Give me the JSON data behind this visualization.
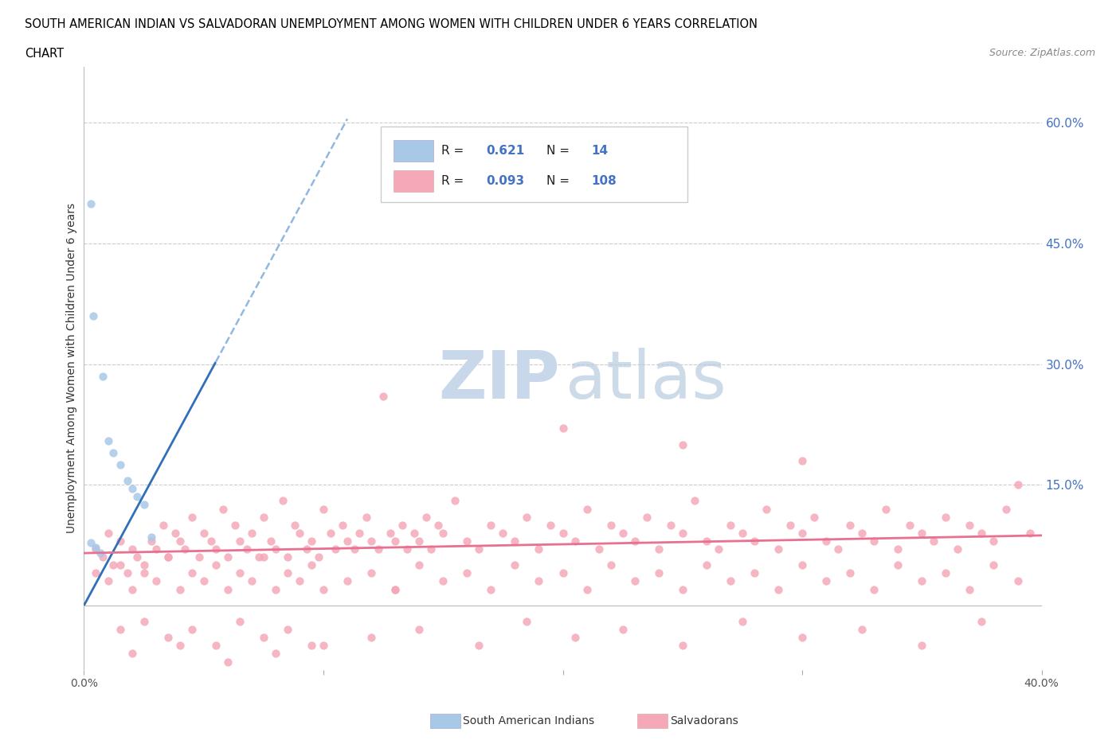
{
  "title_line1": "SOUTH AMERICAN INDIAN VS SALVADORAN UNEMPLOYMENT AMONG WOMEN WITH CHILDREN UNDER 6 YEARS CORRELATION",
  "title_line2": "CHART",
  "source": "Source: ZipAtlas.com",
  "ylabel": "Unemployment Among Women with Children Under 6 years",
  "xlim": [
    0.0,
    0.4
  ],
  "ylim": [
    -0.08,
    0.67
  ],
  "ytick_values": [
    0.0,
    0.15,
    0.3,
    0.45,
    0.6
  ],
  "ytick_labels": [
    "",
    "15.0%",
    "30.0%",
    "45.0%",
    "60.0%"
  ],
  "grid_color": "#cccccc",
  "background_color": "#ffffff",
  "blue_color": "#a8c8e8",
  "pink_color": "#f4a8b8",
  "blue_line_color": "#3070b8",
  "blue_dash_color": "#90b8e0",
  "pink_line_color": "#e87090",
  "val_color": "#4472C4",
  "legend_R1_val": "0.621",
  "legend_N1_val": "14",
  "legend_R2_val": "0.093",
  "legend_N2_val": "108",
  "trend_blue_solid_x0": 0.0,
  "trend_blue_solid_y0": 0.0,
  "trend_blue_slope": 5.5,
  "trend_blue_solid_xend": 0.055,
  "trend_blue_dash_xend": 0.11,
  "trend_pink_x0": 0.0,
  "trend_pink_y0": 0.065,
  "trend_pink_slope": 0.055,
  "trend_pink_xend": 0.4,
  "blue_scatter_x": [
    0.003,
    0.004,
    0.008,
    0.01,
    0.012,
    0.015,
    0.018,
    0.02,
    0.022,
    0.025,
    0.028,
    0.003,
    0.005,
    0.007
  ],
  "blue_scatter_y": [
    0.5,
    0.36,
    0.285,
    0.205,
    0.19,
    0.175,
    0.155,
    0.145,
    0.135,
    0.125,
    0.085,
    0.078,
    0.072,
    0.065
  ],
  "pink_scatter_x": [
    0.005,
    0.008,
    0.01,
    0.012,
    0.015,
    0.018,
    0.02,
    0.022,
    0.025,
    0.028,
    0.03,
    0.033,
    0.035,
    0.038,
    0.04,
    0.042,
    0.045,
    0.048,
    0.05,
    0.053,
    0.055,
    0.058,
    0.06,
    0.063,
    0.065,
    0.068,
    0.07,
    0.073,
    0.075,
    0.078,
    0.08,
    0.083,
    0.085,
    0.088,
    0.09,
    0.093,
    0.095,
    0.098,
    0.1,
    0.103,
    0.105,
    0.108,
    0.11,
    0.113,
    0.115,
    0.118,
    0.12,
    0.123,
    0.125,
    0.128,
    0.13,
    0.133,
    0.135,
    0.138,
    0.14,
    0.143,
    0.145,
    0.148,
    0.15,
    0.155,
    0.16,
    0.165,
    0.17,
    0.175,
    0.18,
    0.185,
    0.19,
    0.195,
    0.2,
    0.205,
    0.21,
    0.215,
    0.22,
    0.225,
    0.23,
    0.235,
    0.24,
    0.245,
    0.25,
    0.255,
    0.26,
    0.265,
    0.27,
    0.275,
    0.28,
    0.285,
    0.29,
    0.295,
    0.3,
    0.305,
    0.31,
    0.315,
    0.32,
    0.325,
    0.33,
    0.335,
    0.34,
    0.345,
    0.35,
    0.355,
    0.36,
    0.365,
    0.37,
    0.375,
    0.38,
    0.385,
    0.39,
    0.395
  ],
  "pink_scatter_y": [
    0.07,
    0.06,
    0.09,
    0.05,
    0.08,
    0.04,
    0.07,
    0.06,
    0.05,
    0.08,
    0.07,
    0.1,
    0.06,
    0.09,
    0.08,
    0.07,
    0.11,
    0.06,
    0.09,
    0.08,
    0.07,
    0.12,
    0.06,
    0.1,
    0.08,
    0.07,
    0.09,
    0.06,
    0.11,
    0.08,
    0.07,
    0.13,
    0.06,
    0.1,
    0.09,
    0.07,
    0.08,
    0.06,
    0.12,
    0.09,
    0.07,
    0.1,
    0.08,
    0.07,
    0.09,
    0.11,
    0.08,
    0.07,
    0.26,
    0.09,
    0.08,
    0.1,
    0.07,
    0.09,
    0.08,
    0.11,
    0.07,
    0.1,
    0.09,
    0.13,
    0.08,
    0.07,
    0.1,
    0.09,
    0.08,
    0.11,
    0.07,
    0.1,
    0.09,
    0.08,
    0.12,
    0.07,
    0.1,
    0.09,
    0.08,
    0.11,
    0.07,
    0.1,
    0.09,
    0.13,
    0.08,
    0.07,
    0.1,
    0.09,
    0.08,
    0.12,
    0.07,
    0.1,
    0.09,
    0.11,
    0.08,
    0.07,
    0.1,
    0.09,
    0.08,
    0.12,
    0.07,
    0.1,
    0.09,
    0.08,
    0.11,
    0.07,
    0.1,
    0.09,
    0.08,
    0.12,
    0.15,
    0.09
  ],
  "pink_scatter_x2": [
    0.005,
    0.01,
    0.015,
    0.02,
    0.025,
    0.03,
    0.035,
    0.04,
    0.045,
    0.05,
    0.055,
    0.06,
    0.065,
    0.07,
    0.075,
    0.08,
    0.085,
    0.09,
    0.095,
    0.1,
    0.11,
    0.12,
    0.13,
    0.14,
    0.15,
    0.16,
    0.17,
    0.18,
    0.19,
    0.2,
    0.21,
    0.22,
    0.23,
    0.24,
    0.25,
    0.26,
    0.27,
    0.28,
    0.29,
    0.3,
    0.31,
    0.32,
    0.33,
    0.34,
    0.35,
    0.36,
    0.37,
    0.38,
    0.39,
    0.015,
    0.025,
    0.035,
    0.045,
    0.055,
    0.065,
    0.075,
    0.085,
    0.095,
    0.12,
    0.14,
    0.165,
    0.185,
    0.205,
    0.225,
    0.25,
    0.275,
    0.3,
    0.325,
    0.35,
    0.375,
    0.2,
    0.25,
    0.3,
    0.13,
    0.02,
    0.04,
    0.06,
    0.08,
    0.1
  ],
  "pink_scatter_y2": [
    0.04,
    0.03,
    0.05,
    0.02,
    0.04,
    0.03,
    0.06,
    0.02,
    0.04,
    0.03,
    0.05,
    0.02,
    0.04,
    0.03,
    0.06,
    0.02,
    0.04,
    0.03,
    0.05,
    0.02,
    0.03,
    0.04,
    0.02,
    0.05,
    0.03,
    0.04,
    0.02,
    0.05,
    0.03,
    0.04,
    0.02,
    0.05,
    0.03,
    0.04,
    0.02,
    0.05,
    0.03,
    0.04,
    0.02,
    0.05,
    0.03,
    0.04,
    0.02,
    0.05,
    0.03,
    0.04,
    0.02,
    0.05,
    0.03,
    -0.03,
    -0.02,
    -0.04,
    -0.03,
    -0.05,
    -0.02,
    -0.04,
    -0.03,
    -0.05,
    -0.04,
    -0.03,
    -0.05,
    -0.02,
    -0.04,
    -0.03,
    -0.05,
    -0.02,
    -0.04,
    -0.03,
    -0.05,
    -0.02,
    0.22,
    0.2,
    0.18,
    0.02,
    -0.06,
    -0.05,
    -0.07,
    -0.06,
    -0.05
  ]
}
